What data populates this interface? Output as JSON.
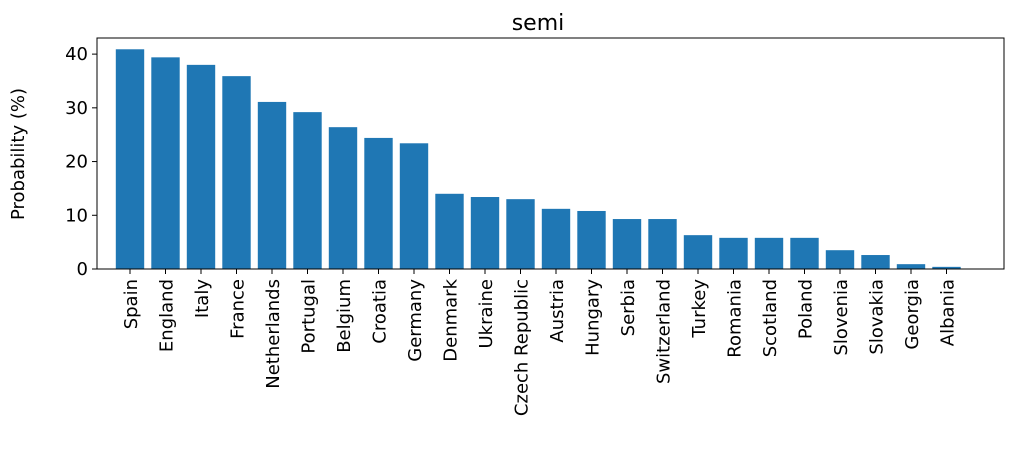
{
  "chart_data": {
    "type": "bar",
    "title": "semi",
    "ylabel": "Probability (%)",
    "categories": [
      "Spain",
      "England",
      "Italy",
      "France",
      "Netherlands",
      "Portugal",
      "Belgium",
      "Croatia",
      "Germany",
      "Denmark",
      "Ukraine",
      "Czech Republic",
      "Austria",
      "Hungary",
      "Serbia",
      "Switzerland",
      "Turkey",
      "Romania",
      "Scotland",
      "Poland",
      "Slovenia",
      "Slovakia",
      "Georgia",
      "Albania"
    ],
    "values": [
      40.9,
      39.4,
      38.0,
      35.9,
      31.1,
      29.2,
      26.4,
      24.4,
      23.4,
      14.0,
      13.4,
      13.0,
      11.2,
      10.8,
      9.3,
      9.3,
      6.3,
      5.8,
      5.8,
      5.8,
      3.5,
      2.6,
      0.9,
      0.4
    ],
    "color": "#1f77b4",
    "ylim": [
      0,
      43
    ],
    "yticks": [
      0,
      10,
      20,
      30,
      40
    ],
    "grid": false
  }
}
